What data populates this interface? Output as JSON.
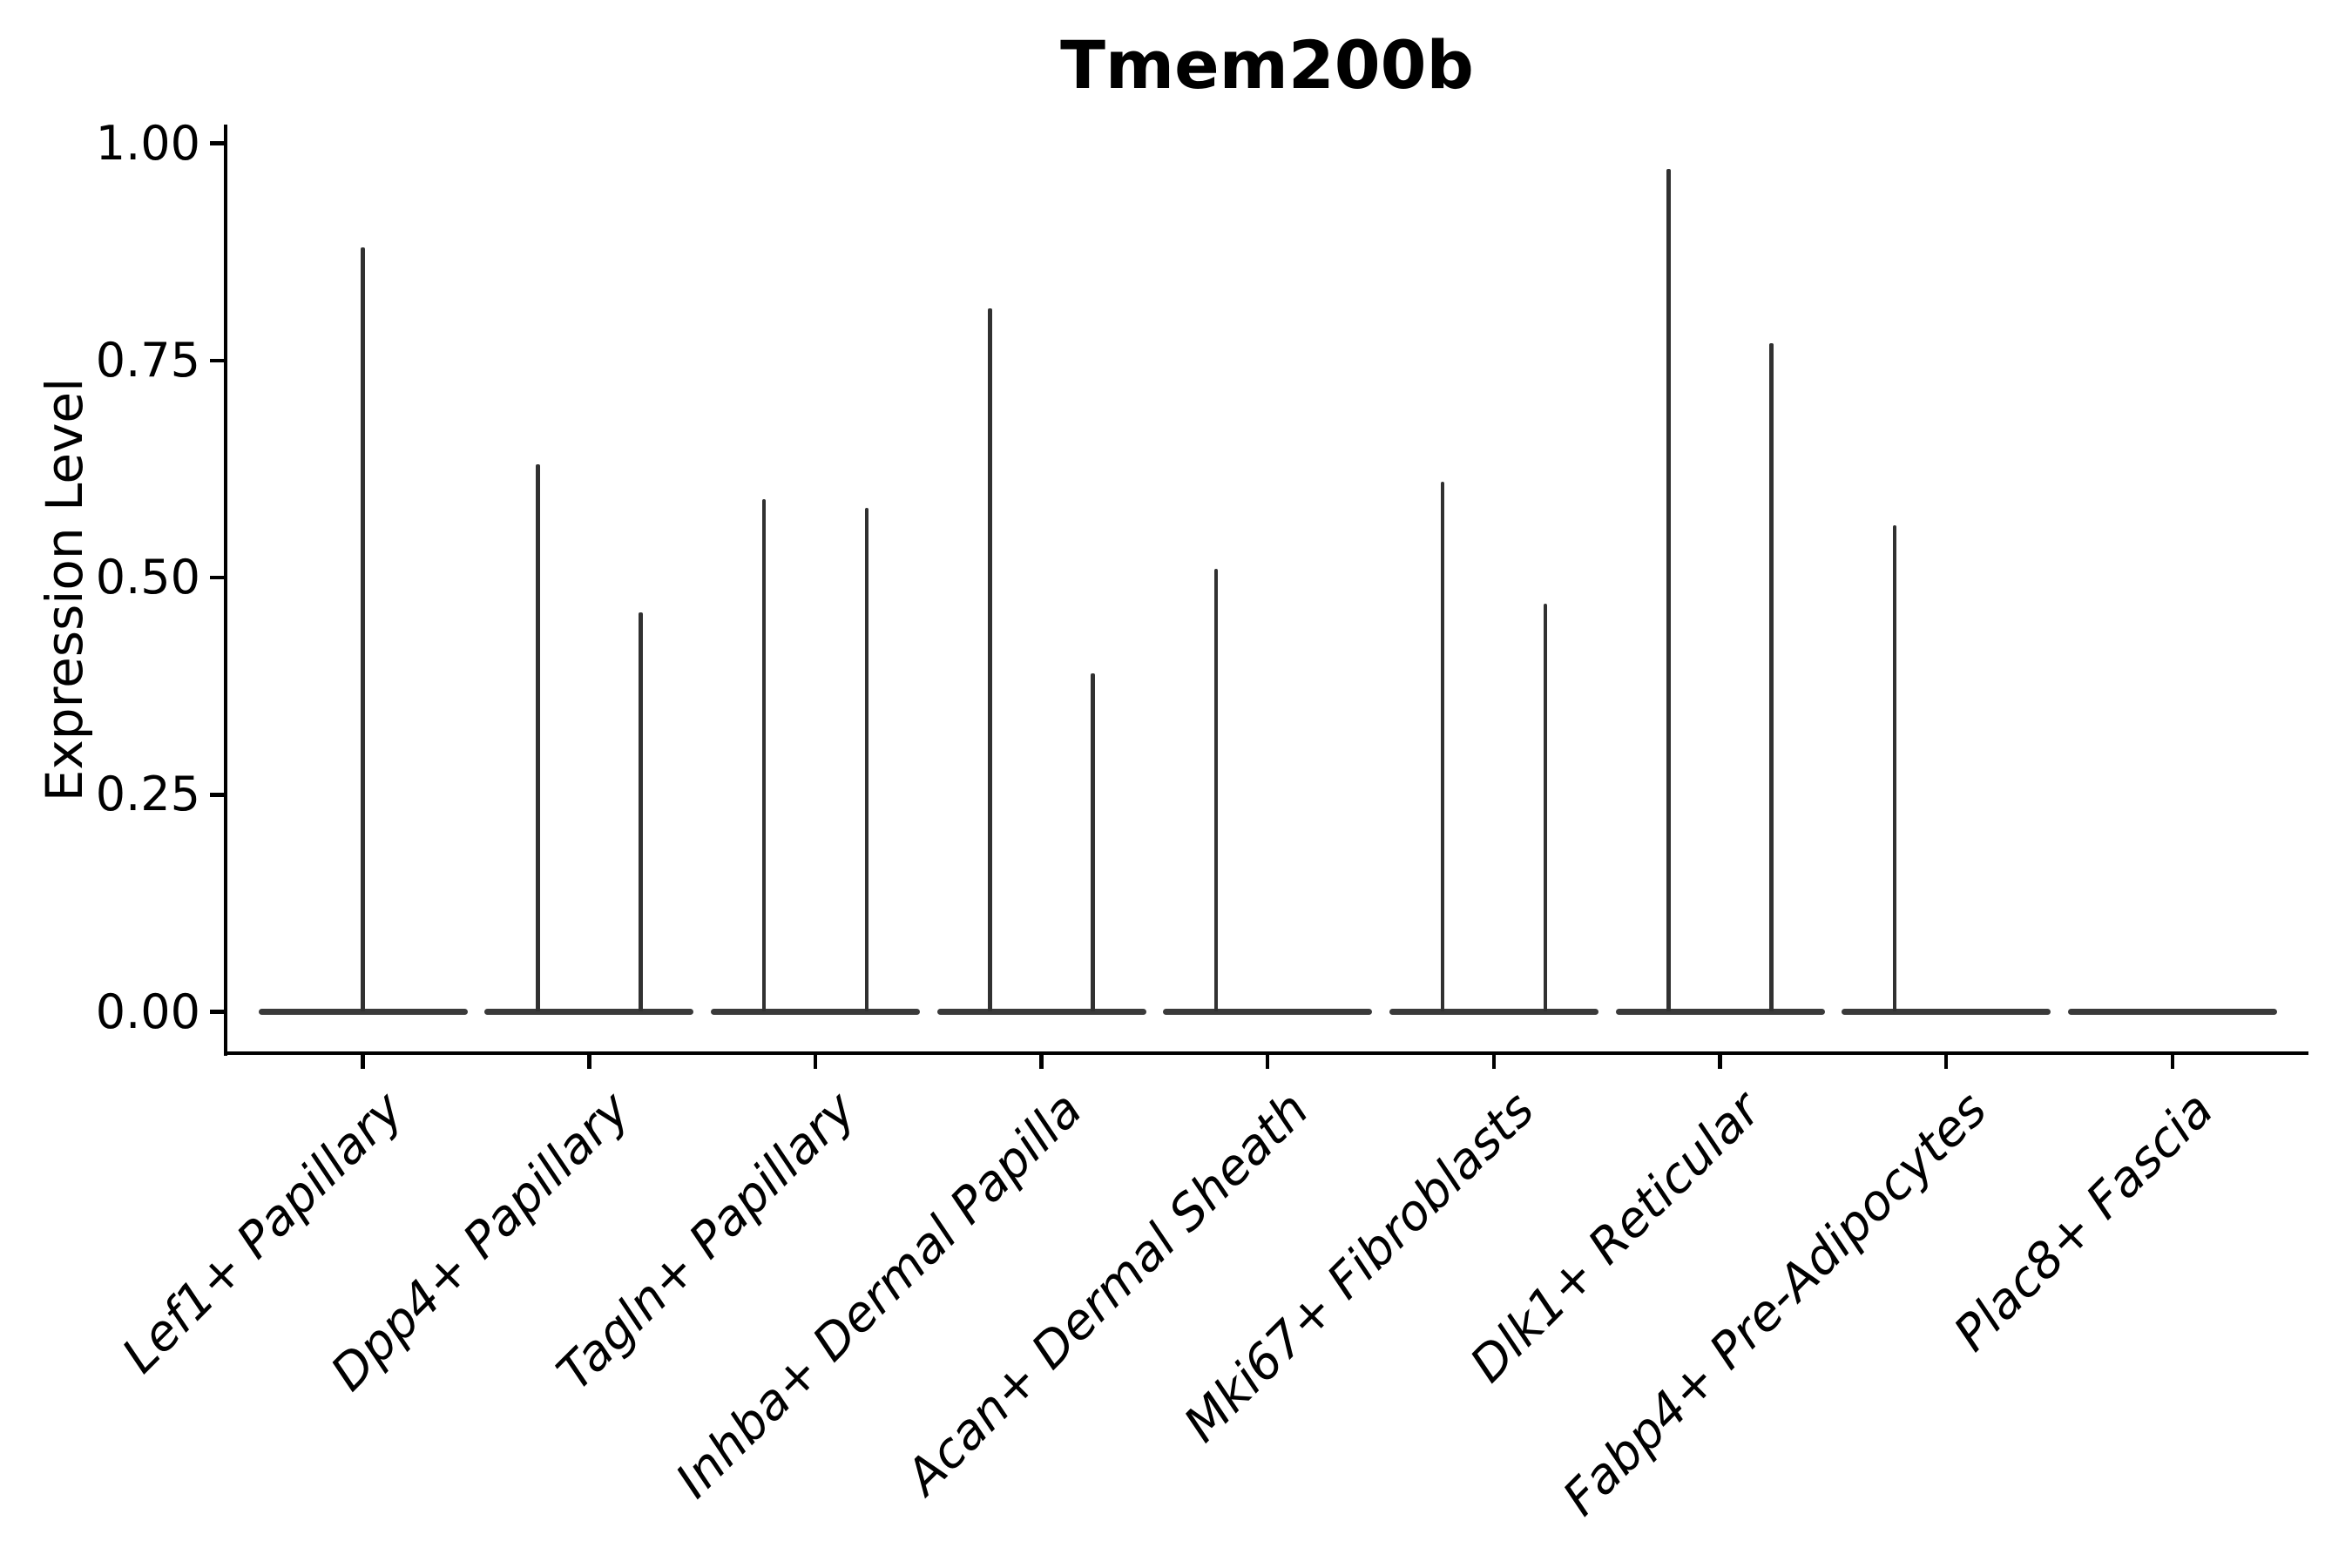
{
  "figure": {
    "title": "Tmem200b",
    "background_color": "#ffffff",
    "text_color": "#000000",
    "violin_color": "#313131"
  },
  "axes": {
    "ylabel": "Expression Level",
    "ytick_labels": [
      "0.00",
      "0.25",
      "0.50",
      "0.75",
      "1.00"
    ]
  },
  "chart_data": {
    "type": "violin",
    "title": "Tmem200b",
    "xlabel": "",
    "ylabel": "Expression Level",
    "ylim": [
      -0.05,
      1.02
    ],
    "yticks": [
      0.0,
      0.25,
      0.5,
      0.75,
      1.0
    ],
    "grid": false,
    "legend_position": "none",
    "categories": [
      "Lef1+ Papillary",
      "Dpp4+ Papillary",
      "Tagln+ Papillary",
      "Inhba+ Dermal Papilla",
      "Acan+ Dermal Sheath",
      "Mki67+ Fibroblasts",
      "Dlk1+ Reticular",
      "Fabp4+ Pre-Adipocytes",
      "Plac8+ Fascia"
    ],
    "description": "Spike-shaped violins: expression mostly 0 (flat baseline at y=0 spanning each category), with narrow vertical spikes reaching the max expression value. Some categories show one centered spike, others two side-by-side spikes (left/right slots), Plac8+ Fascia shows no expression.",
    "series": [
      {
        "category": "Lef1+ Papillary",
        "violins": [
          {
            "slot": "center",
            "max": 0.88
          }
        ]
      },
      {
        "category": "Dpp4+ Papillary",
        "violins": [
          {
            "slot": "left",
            "max": 0.63
          },
          {
            "slot": "right",
            "max": 0.46
          }
        ]
      },
      {
        "category": "Tagln+ Papillary",
        "violins": [
          {
            "slot": "left",
            "max": 0.59
          },
          {
            "slot": "right",
            "max": 0.58
          }
        ]
      },
      {
        "category": "Inhba+ Dermal Papilla",
        "violins": [
          {
            "slot": "left",
            "max": 0.81
          },
          {
            "slot": "right",
            "max": 0.39
          }
        ]
      },
      {
        "category": "Acan+ Dermal Sheath",
        "violins": [
          {
            "slot": "left",
            "max": 0.51
          }
        ]
      },
      {
        "category": "Mki67+ Fibroblasts",
        "violins": [
          {
            "slot": "left",
            "max": 0.61
          },
          {
            "slot": "right",
            "max": 0.47
          }
        ]
      },
      {
        "category": "Dlk1+ Reticular",
        "violins": [
          {
            "slot": "left",
            "max": 0.97
          },
          {
            "slot": "right",
            "max": 0.77
          }
        ]
      },
      {
        "category": "Fabp4+ Pre-Adipocytes",
        "violins": [
          {
            "slot": "left",
            "max": 0.56
          }
        ]
      },
      {
        "category": "Plac8+ Fascia",
        "violins": []
      }
    ]
  }
}
